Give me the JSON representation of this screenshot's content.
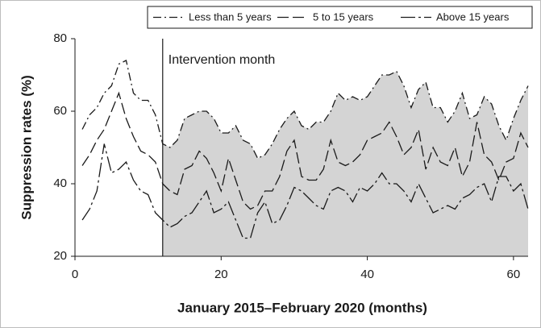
{
  "chart_data": {
    "type": "line",
    "xlabel": "January 2015–February 2020 (months)",
    "ylabel": "Suppression rates (%)",
    "annotation": "Intervention month",
    "intervention_month": 12,
    "x": [
      1,
      2,
      3,
      4,
      5,
      6,
      7,
      8,
      9,
      10,
      11,
      12,
      13,
      14,
      15,
      16,
      17,
      18,
      19,
      20,
      21,
      22,
      23,
      24,
      25,
      26,
      27,
      28,
      29,
      30,
      31,
      32,
      33,
      34,
      35,
      36,
      37,
      38,
      39,
      40,
      41,
      42,
      43,
      44,
      45,
      46,
      47,
      48,
      49,
      50,
      51,
      52,
      53,
      54,
      55,
      56,
      57,
      58,
      59,
      60,
      61,
      62
    ],
    "series": [
      {
        "name": "Less than 5 years",
        "color": "#1a1a1a",
        "values": [
          55,
          59,
          61,
          65,
          67,
          73,
          74,
          65,
          63,
          63,
          59,
          51,
          50,
          52,
          58,
          59,
          60,
          60,
          58,
          54,
          54,
          56,
          52,
          51,
          47,
          48,
          51,
          55,
          58,
          60,
          56,
          55,
          57,
          57,
          60,
          65,
          63,
          64,
          63,
          64,
          67,
          70,
          70,
          71,
          67,
          61,
          66,
          68,
          61,
          61,
          57,
          60,
          65,
          58,
          59,
          64,
          62,
          56,
          52,
          58,
          63,
          67
        ]
      },
      {
        "name": "5 to  15 years",
        "color": "#1a1a1a",
        "values": [
          45,
          48,
          52,
          55,
          60,
          65,
          58,
          53,
          49,
          48,
          46,
          40,
          38,
          37,
          44,
          45,
          49,
          47,
          43,
          38,
          47,
          41,
          35,
          33,
          34,
          38,
          38,
          42,
          49,
          52,
          42,
          41,
          41,
          44,
          52,
          46,
          45,
          46,
          48,
          52,
          53,
          54,
          57,
          53,
          48,
          50,
          55,
          44,
          50,
          46,
          45,
          50,
          42,
          46,
          57,
          48,
          46,
          41,
          46,
          47,
          54,
          50
        ]
      },
      {
        "name": "Above 15 years",
        "color": "#1a1a1a",
        "values": [
          30,
          33,
          38,
          51,
          43,
          44,
          46,
          41,
          38,
          37,
          32,
          30,
          28,
          29,
          31,
          32,
          35,
          38,
          32,
          33,
          35,
          30,
          25,
          25,
          32,
          35,
          29,
          30,
          34,
          39,
          38,
          36,
          34,
          33,
          38,
          39,
          38,
          35,
          39,
          38,
          40,
          43,
          40,
          40,
          38,
          35,
          40,
          36,
          32,
          33,
          34,
          33,
          36,
          37,
          39,
          40,
          35,
          42,
          42,
          38,
          40,
          33
        ]
      }
    ],
    "xlim": [
      0,
      62
    ],
    "ylim": [
      20,
      80
    ],
    "xticks": [
      0,
      20,
      40,
      60
    ],
    "yticks": [
      20,
      40,
      60,
      80
    ],
    "shade_color": "#d4d4d4"
  }
}
